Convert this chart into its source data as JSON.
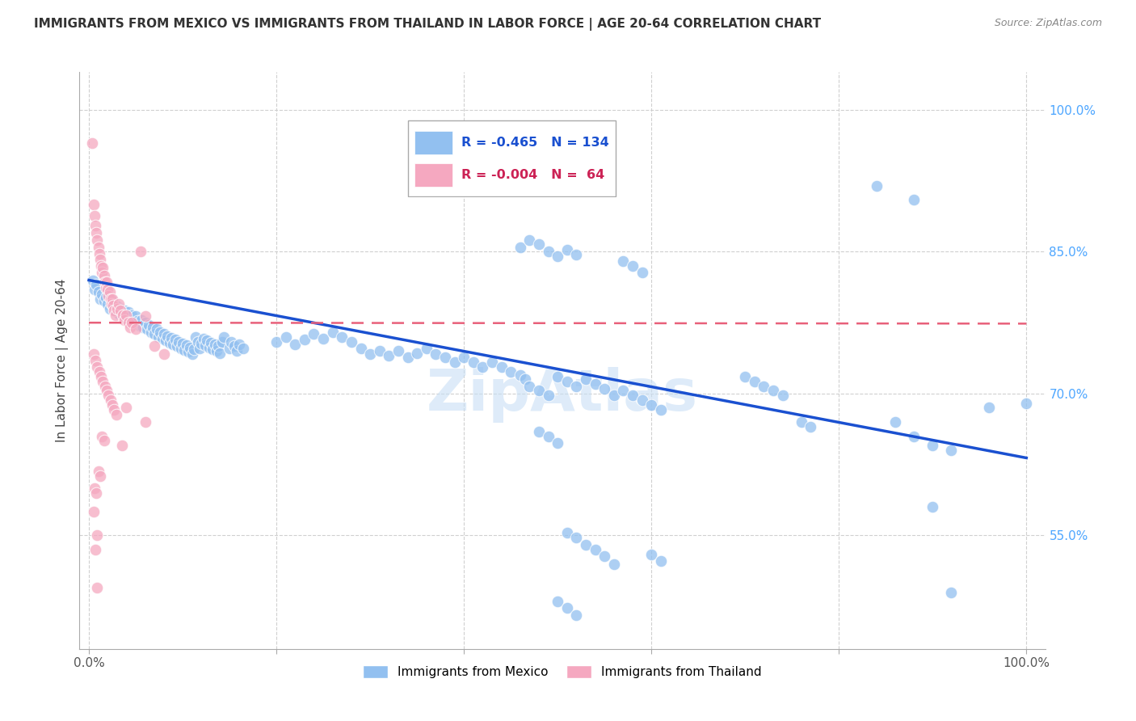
{
  "title": "IMMIGRANTS FROM MEXICO VS IMMIGRANTS FROM THAILAND IN LABOR FORCE | AGE 20-64 CORRELATION CHART",
  "source": "Source: ZipAtlas.com",
  "ylabel": "In Labor Force | Age 20-64",
  "xlim": [
    -0.01,
    1.02
  ],
  "ylim": [
    0.43,
    1.04
  ],
  "ytick_positions": [
    0.55,
    0.7,
    0.85,
    1.0
  ],
  "yticklabels": [
    "55.0%",
    "70.0%",
    "85.0%",
    "100.0%"
  ],
  "xtick_positions": [
    0.0,
    0.2,
    0.4,
    0.6,
    0.8,
    1.0
  ],
  "xticklabels": [
    "0.0%",
    "",
    "",
    "",
    "",
    "100.0%"
  ],
  "legend_box": {
    "blue_r": "-0.465",
    "blue_n": "134",
    "pink_r": "-0.004",
    "pink_n": " 64"
  },
  "mexico_color": "#92c0f0",
  "thailand_color": "#f5a8c0",
  "regression_blue_color": "#1a50d0",
  "regression_pink_color": "#e8607a",
  "watermark": "ZipAtlas",
  "mexico_scatter": [
    [
      0.004,
      0.82
    ],
    [
      0.006,
      0.81
    ],
    [
      0.008,
      0.815
    ],
    [
      0.01,
      0.808
    ],
    [
      0.012,
      0.8
    ],
    [
      0.014,
      0.805
    ],
    [
      0.016,
      0.798
    ],
    [
      0.018,
      0.802
    ],
    [
      0.02,
      0.795
    ],
    [
      0.022,
      0.79
    ],
    [
      0.024,
      0.8
    ],
    [
      0.026,
      0.793
    ],
    [
      0.028,
      0.788
    ],
    [
      0.03,
      0.792
    ],
    [
      0.032,
      0.785
    ],
    [
      0.034,
      0.79
    ],
    [
      0.036,
      0.783
    ],
    [
      0.038,
      0.788
    ],
    [
      0.04,
      0.78
    ],
    [
      0.042,
      0.786
    ],
    [
      0.044,
      0.778
    ],
    [
      0.046,
      0.783
    ],
    [
      0.048,
      0.775
    ],
    [
      0.05,
      0.782
    ],
    [
      0.052,
      0.777
    ],
    [
      0.054,
      0.772
    ],
    [
      0.056,
      0.778
    ],
    [
      0.058,
      0.77
    ],
    [
      0.06,
      0.775
    ],
    [
      0.062,
      0.768
    ],
    [
      0.064,
      0.773
    ],
    [
      0.066,
      0.765
    ],
    [
      0.068,
      0.77
    ],
    [
      0.07,
      0.763
    ],
    [
      0.072,
      0.768
    ],
    [
      0.074,
      0.76
    ],
    [
      0.076,
      0.765
    ],
    [
      0.078,
      0.758
    ],
    [
      0.08,
      0.763
    ],
    [
      0.082,
      0.756
    ],
    [
      0.084,
      0.761
    ],
    [
      0.086,
      0.754
    ],
    [
      0.088,
      0.759
    ],
    [
      0.09,
      0.752
    ],
    [
      0.092,
      0.757
    ],
    [
      0.094,
      0.75
    ],
    [
      0.096,
      0.755
    ],
    [
      0.098,
      0.748
    ],
    [
      0.1,
      0.753
    ],
    [
      0.102,
      0.746
    ],
    [
      0.104,
      0.751
    ],
    [
      0.106,
      0.744
    ],
    [
      0.108,
      0.749
    ],
    [
      0.11,
      0.742
    ],
    [
      0.112,
      0.747
    ],
    [
      0.114,
      0.76
    ],
    [
      0.116,
      0.755
    ],
    [
      0.118,
      0.748
    ],
    [
      0.12,
      0.753
    ],
    [
      0.122,
      0.758
    ],
    [
      0.124,
      0.751
    ],
    [
      0.126,
      0.756
    ],
    [
      0.128,
      0.749
    ],
    [
      0.13,
      0.754
    ],
    [
      0.132,
      0.747
    ],
    [
      0.134,
      0.752
    ],
    [
      0.136,
      0.745
    ],
    [
      0.138,
      0.75
    ],
    [
      0.14,
      0.743
    ],
    [
      0.142,
      0.755
    ],
    [
      0.144,
      0.76
    ],
    [
      0.15,
      0.748
    ],
    [
      0.152,
      0.755
    ],
    [
      0.155,
      0.75
    ],
    [
      0.158,
      0.745
    ],
    [
      0.16,
      0.752
    ],
    [
      0.165,
      0.748
    ],
    [
      0.2,
      0.755
    ],
    [
      0.21,
      0.76
    ],
    [
      0.22,
      0.752
    ],
    [
      0.23,
      0.757
    ],
    [
      0.24,
      0.763
    ],
    [
      0.25,
      0.758
    ],
    [
      0.26,
      0.765
    ],
    [
      0.27,
      0.76
    ],
    [
      0.28,
      0.755
    ],
    [
      0.29,
      0.748
    ],
    [
      0.3,
      0.742
    ],
    [
      0.31,
      0.745
    ],
    [
      0.32,
      0.74
    ],
    [
      0.33,
      0.745
    ],
    [
      0.34,
      0.738
    ],
    [
      0.35,
      0.743
    ],
    [
      0.36,
      0.748
    ],
    [
      0.37,
      0.742
    ],
    [
      0.38,
      0.738
    ],
    [
      0.39,
      0.733
    ],
    [
      0.4,
      0.738
    ],
    [
      0.41,
      0.733
    ],
    [
      0.42,
      0.728
    ],
    [
      0.43,
      0.733
    ],
    [
      0.44,
      0.728
    ],
    [
      0.45,
      0.723
    ],
    [
      0.46,
      0.855
    ],
    [
      0.47,
      0.862
    ],
    [
      0.48,
      0.858
    ],
    [
      0.49,
      0.85
    ],
    [
      0.5,
      0.845
    ],
    [
      0.51,
      0.852
    ],
    [
      0.52,
      0.847
    ],
    [
      0.46,
      0.72
    ],
    [
      0.465,
      0.715
    ],
    [
      0.47,
      0.708
    ],
    [
      0.48,
      0.703
    ],
    [
      0.49,
      0.698
    ],
    [
      0.5,
      0.718
    ],
    [
      0.51,
      0.713
    ],
    [
      0.52,
      0.708
    ],
    [
      0.53,
      0.715
    ],
    [
      0.54,
      0.71
    ],
    [
      0.55,
      0.705
    ],
    [
      0.56,
      0.698
    ],
    [
      0.57,
      0.703
    ],
    [
      0.58,
      0.698
    ],
    [
      0.57,
      0.84
    ],
    [
      0.58,
      0.835
    ],
    [
      0.59,
      0.828
    ],
    [
      0.59,
      0.693
    ],
    [
      0.6,
      0.688
    ],
    [
      0.61,
      0.683
    ],
    [
      0.48,
      0.66
    ],
    [
      0.49,
      0.655
    ],
    [
      0.5,
      0.648
    ],
    [
      0.51,
      0.553
    ],
    [
      0.52,
      0.548
    ],
    [
      0.53,
      0.54
    ],
    [
      0.54,
      0.535
    ],
    [
      0.55,
      0.528
    ],
    [
      0.56,
      0.52
    ],
    [
      0.6,
      0.53
    ],
    [
      0.61,
      0.523
    ],
    [
      0.5,
      0.48
    ],
    [
      0.51,
      0.473
    ],
    [
      0.52,
      0.466
    ],
    [
      0.7,
      0.718
    ],
    [
      0.71,
      0.713
    ],
    [
      0.72,
      0.708
    ],
    [
      0.73,
      0.703
    ],
    [
      0.74,
      0.698
    ],
    [
      0.76,
      0.67
    ],
    [
      0.77,
      0.665
    ],
    [
      0.84,
      0.92
    ],
    [
      0.88,
      0.905
    ],
    [
      0.86,
      0.67
    ],
    [
      0.88,
      0.655
    ],
    [
      0.9,
      0.645
    ],
    [
      0.92,
      0.64
    ],
    [
      0.96,
      0.685
    ],
    [
      0.9,
      0.58
    ],
    [
      0.92,
      0.49
    ],
    [
      1.0,
      0.69
    ]
  ],
  "thailand_scatter": [
    [
      0.003,
      0.965
    ],
    [
      0.005,
      0.9
    ],
    [
      0.006,
      0.888
    ],
    [
      0.007,
      0.878
    ],
    [
      0.008,
      0.87
    ],
    [
      0.009,
      0.862
    ],
    [
      0.01,
      0.855
    ],
    [
      0.011,
      0.848
    ],
    [
      0.012,
      0.842
    ],
    [
      0.013,
      0.835
    ],
    [
      0.014,
      0.828
    ],
    [
      0.015,
      0.833
    ],
    [
      0.016,
      0.825
    ],
    [
      0.017,
      0.818
    ],
    [
      0.018,
      0.812
    ],
    [
      0.019,
      0.818
    ],
    [
      0.02,
      0.81
    ],
    [
      0.021,
      0.803
    ],
    [
      0.022,
      0.808
    ],
    [
      0.023,
      0.8
    ],
    [
      0.024,
      0.795
    ],
    [
      0.025,
      0.8
    ],
    [
      0.026,
      0.793
    ],
    [
      0.027,
      0.788
    ],
    [
      0.028,
      0.783
    ],
    [
      0.03,
      0.79
    ],
    [
      0.032,
      0.795
    ],
    [
      0.034,
      0.788
    ],
    [
      0.036,
      0.783
    ],
    [
      0.038,
      0.778
    ],
    [
      0.04,
      0.783
    ],
    [
      0.042,
      0.775
    ],
    [
      0.044,
      0.77
    ],
    [
      0.046,
      0.775
    ],
    [
      0.05,
      0.768
    ],
    [
      0.005,
      0.742
    ],
    [
      0.007,
      0.735
    ],
    [
      0.009,
      0.728
    ],
    [
      0.011,
      0.723
    ],
    [
      0.013,
      0.718
    ],
    [
      0.015,
      0.713
    ],
    [
      0.017,
      0.708
    ],
    [
      0.019,
      0.703
    ],
    [
      0.021,
      0.698
    ],
    [
      0.023,
      0.693
    ],
    [
      0.025,
      0.688
    ],
    [
      0.027,
      0.683
    ],
    [
      0.029,
      0.678
    ],
    [
      0.014,
      0.655
    ],
    [
      0.016,
      0.65
    ],
    [
      0.035,
      0.645
    ],
    [
      0.01,
      0.618
    ],
    [
      0.012,
      0.613
    ],
    [
      0.006,
      0.6
    ],
    [
      0.008,
      0.595
    ],
    [
      0.005,
      0.575
    ],
    [
      0.009,
      0.55
    ],
    [
      0.007,
      0.535
    ],
    [
      0.009,
      0.495
    ],
    [
      0.055,
      0.85
    ],
    [
      0.06,
      0.782
    ],
    [
      0.07,
      0.75
    ],
    [
      0.08,
      0.742
    ],
    [
      0.04,
      0.685
    ],
    [
      0.06,
      0.67
    ]
  ],
  "blue_regression": {
    "x_start": 0.0,
    "y_start": 0.82,
    "x_end": 1.0,
    "y_end": 0.632
  },
  "pink_regression": {
    "x_start": 0.0,
    "y_start": 0.775,
    "x_end": 1.0,
    "y_end": 0.774
  }
}
